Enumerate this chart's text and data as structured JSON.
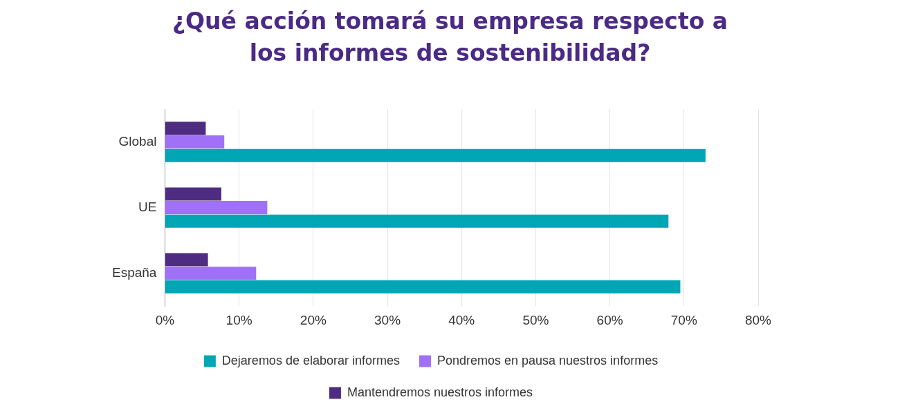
{
  "chart_data": {
    "type": "bar",
    "orientation": "horizontal",
    "title": "¿Qué acción tomará su empresa respecto a los informes de sostenibilidad?",
    "categories": [
      "Global",
      "UE",
      "España"
    ],
    "series": [
      {
        "name": "Dejaremos de elaborar informes",
        "color": "#00a6b4",
        "values": [
          72.9,
          67.9,
          69.5
        ]
      },
      {
        "name": "Pondremos en pausa nuestros informes",
        "color": "#a071f6",
        "values": [
          8.0,
          13.8,
          12.3
        ]
      },
      {
        "name": "Mantendremos nuestros informes",
        "color": "#4e2c82",
        "values": [
          5.5,
          7.6,
          5.8
        ]
      }
    ],
    "xlim": [
      0,
      80
    ],
    "xticks": [
      {
        "value": 0,
        "label": "0%"
      },
      {
        "value": 10,
        "label": "10%"
      },
      {
        "value": 20,
        "label": "20%"
      },
      {
        "value": 30,
        "label": "30%"
      },
      {
        "value": 40,
        "label": "40%"
      },
      {
        "value": 50,
        "label": "50%"
      },
      {
        "value": 60,
        "label": "60%"
      },
      {
        "value": 70,
        "label": "70%"
      },
      {
        "value": 80,
        "label": "80%"
      }
    ],
    "grid": "x",
    "legend": "bottom"
  }
}
